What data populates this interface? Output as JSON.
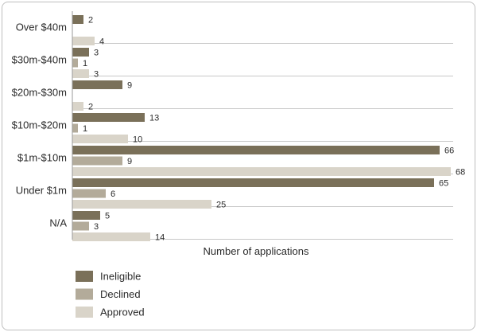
{
  "chart_data": {
    "type": "bar",
    "orientation": "horizontal",
    "categories": [
      "Over $40m",
      "$30m-$40m",
      "$20m-$30m",
      "$10m-$20m",
      "$1m-$10m",
      "Under $1m",
      "N/A"
    ],
    "series": [
      {
        "name": "Ineligible",
        "values": [
          2,
          3,
          9,
          13,
          66,
          65,
          5
        ],
        "color": "#7a7059"
      },
      {
        "name": "Declined",
        "values": [
          null,
          1,
          null,
          1,
          9,
          6,
          3
        ],
        "color": "#b3ab9a"
      },
      {
        "name": "Approved",
        "values": [
          4,
          3,
          2,
          10,
          68,
          25,
          14
        ],
        "color": "#d9d4c9"
      }
    ],
    "xlabel": "Number of applications",
    "ylabel": "",
    "title": "",
    "xlim": [
      0,
      70
    ],
    "grid": "horizontal separators between categories",
    "legend_position": "bottom-left"
  }
}
